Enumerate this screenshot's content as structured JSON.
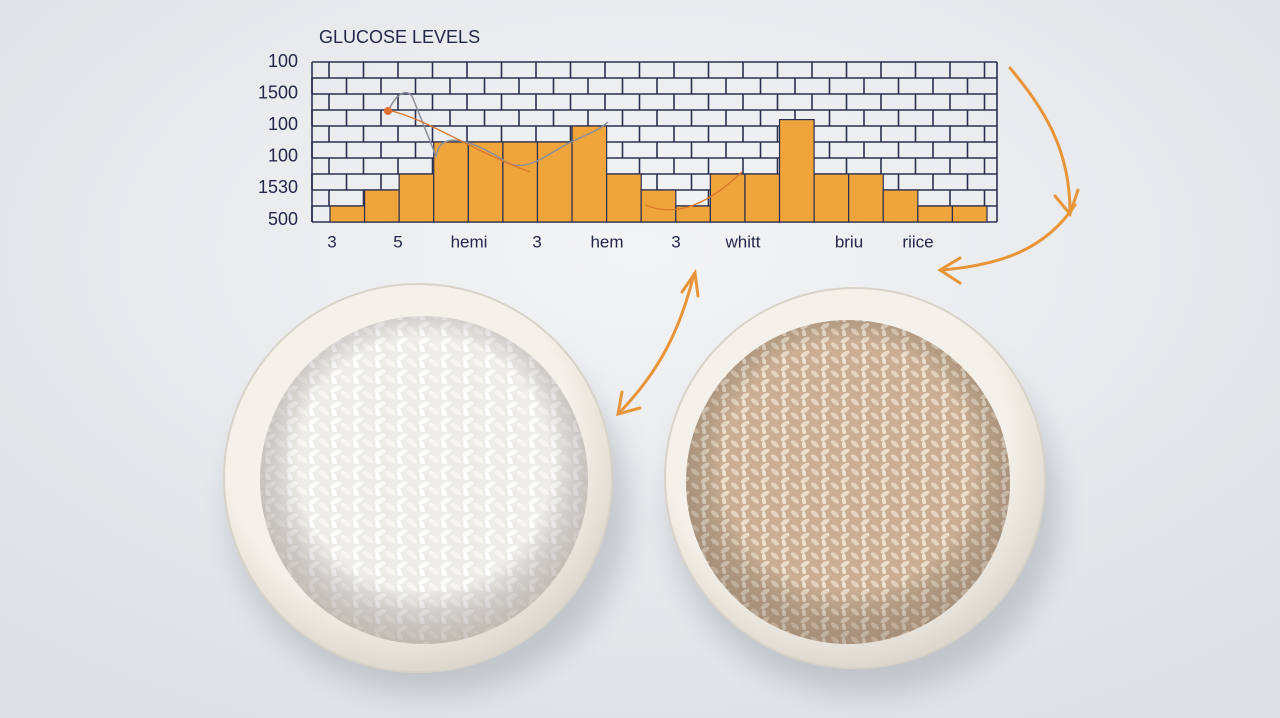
{
  "chart": {
    "title": "GLUCOSE LEVELS",
    "y_labels": [
      100,
      1500,
      100,
      100,
      1530,
      500
    ],
    "x_labels": [
      "3",
      "5",
      "hemi",
      "3",
      "hem",
      "3",
      "whitt",
      "briu",
      "riice"
    ],
    "bar_color": "#f0a53c",
    "bars": [
      1,
      2,
      3,
      5,
      5,
      5,
      5,
      6,
      3,
      2,
      1,
      3,
      3,
      6.4,
      3,
      3,
      2,
      1,
      1
    ]
  }
}
